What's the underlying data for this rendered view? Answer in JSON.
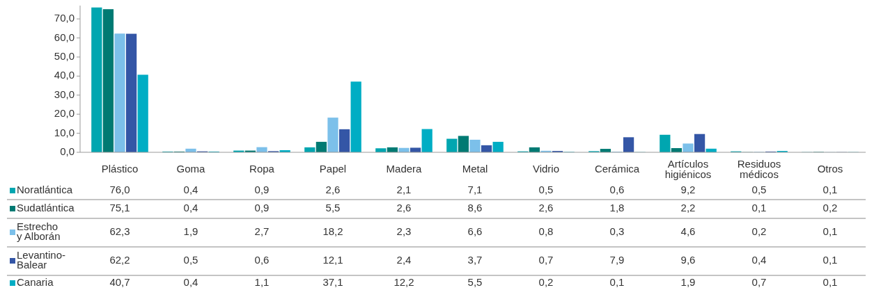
{
  "chart_data": {
    "type": "bar",
    "categories": [
      "Plástico",
      "Goma",
      "Ropa",
      "Papel",
      "Madera",
      "Metal",
      "Vidrio",
      "Cerámica",
      "Artículos\nhigiénicos",
      "Residuos\nmédicos",
      "Otros"
    ],
    "ylim": [
      0,
      77
    ],
    "yticks": [
      {
        "value": 0,
        "label": "0,0"
      },
      {
        "value": 10,
        "label": "10,0"
      },
      {
        "value": 20,
        "label": "20,0"
      },
      {
        "value": 30,
        "label": "30,0"
      },
      {
        "value": 40,
        "label": "40,0"
      },
      {
        "value": 50,
        "label": "50,0"
      },
      {
        "value": 60,
        "label": "60,0"
      },
      {
        "value": 70,
        "label": "70,0"
      }
    ],
    "grid": false,
    "legend": "bottom",
    "series": [
      {
        "name": "Noratlántica",
        "color": "#00a6b0",
        "values": [
          76.0,
          0.4,
          0.9,
          2.6,
          2.1,
          7.1,
          0.5,
          0.6,
          9.2,
          0.5,
          0.1
        ],
        "value_labels": [
          "76,0",
          "0,4",
          "0,9",
          "2,6",
          "2,1",
          "7,1",
          "0,5",
          "0,6",
          "9,2",
          "0,5",
          "0,1"
        ]
      },
      {
        "name": "Sudatlántica",
        "color": "#007a73",
        "values": [
          75.1,
          0.4,
          0.9,
          5.5,
          2.6,
          8.6,
          2.6,
          1.8,
          2.2,
          0.1,
          0.2
        ],
        "value_labels": [
          "75,1",
          "0,4",
          "0,9",
          "5,5",
          "2,6",
          "8,6",
          "2,6",
          "1,8",
          "2,2",
          "0,1",
          "0,2"
        ]
      },
      {
        "name": "Estrecho\ny Alborán",
        "color": "#7cc0ea",
        "values": [
          62.3,
          1.9,
          2.7,
          18.2,
          2.3,
          6.6,
          0.8,
          0.3,
          4.6,
          0.2,
          0.1
        ],
        "value_labels": [
          "62,3",
          "1,9",
          "2,7",
          "18,2",
          "2,3",
          "6,6",
          "0,8",
          "0,3",
          "4,6",
          "0,2",
          "0,1"
        ]
      },
      {
        "name": "Levantino-\nBalear",
        "color": "#3456a6",
        "values": [
          62.2,
          0.5,
          0.6,
          12.1,
          2.4,
          3.7,
          0.7,
          7.9,
          9.6,
          0.4,
          0.1
        ],
        "value_labels": [
          "62,2",
          "0,5",
          "0,6",
          "12,1",
          "2,4",
          "3,7",
          "0,7",
          "7,9",
          "9,6",
          "0,4",
          "0,1"
        ]
      },
      {
        "name": "Canaria",
        "color": "#00adc4",
        "values": [
          40.7,
          0.4,
          1.1,
          37.1,
          12.2,
          5.5,
          0.2,
          0.1,
          1.9,
          0.7,
          0.1
        ],
        "value_labels": [
          "40,7",
          "0,4",
          "1,1",
          "37,1",
          "12,2",
          "5,5",
          "0,2",
          "0,1",
          "1,9",
          "0,7",
          "0,1"
        ]
      }
    ]
  }
}
